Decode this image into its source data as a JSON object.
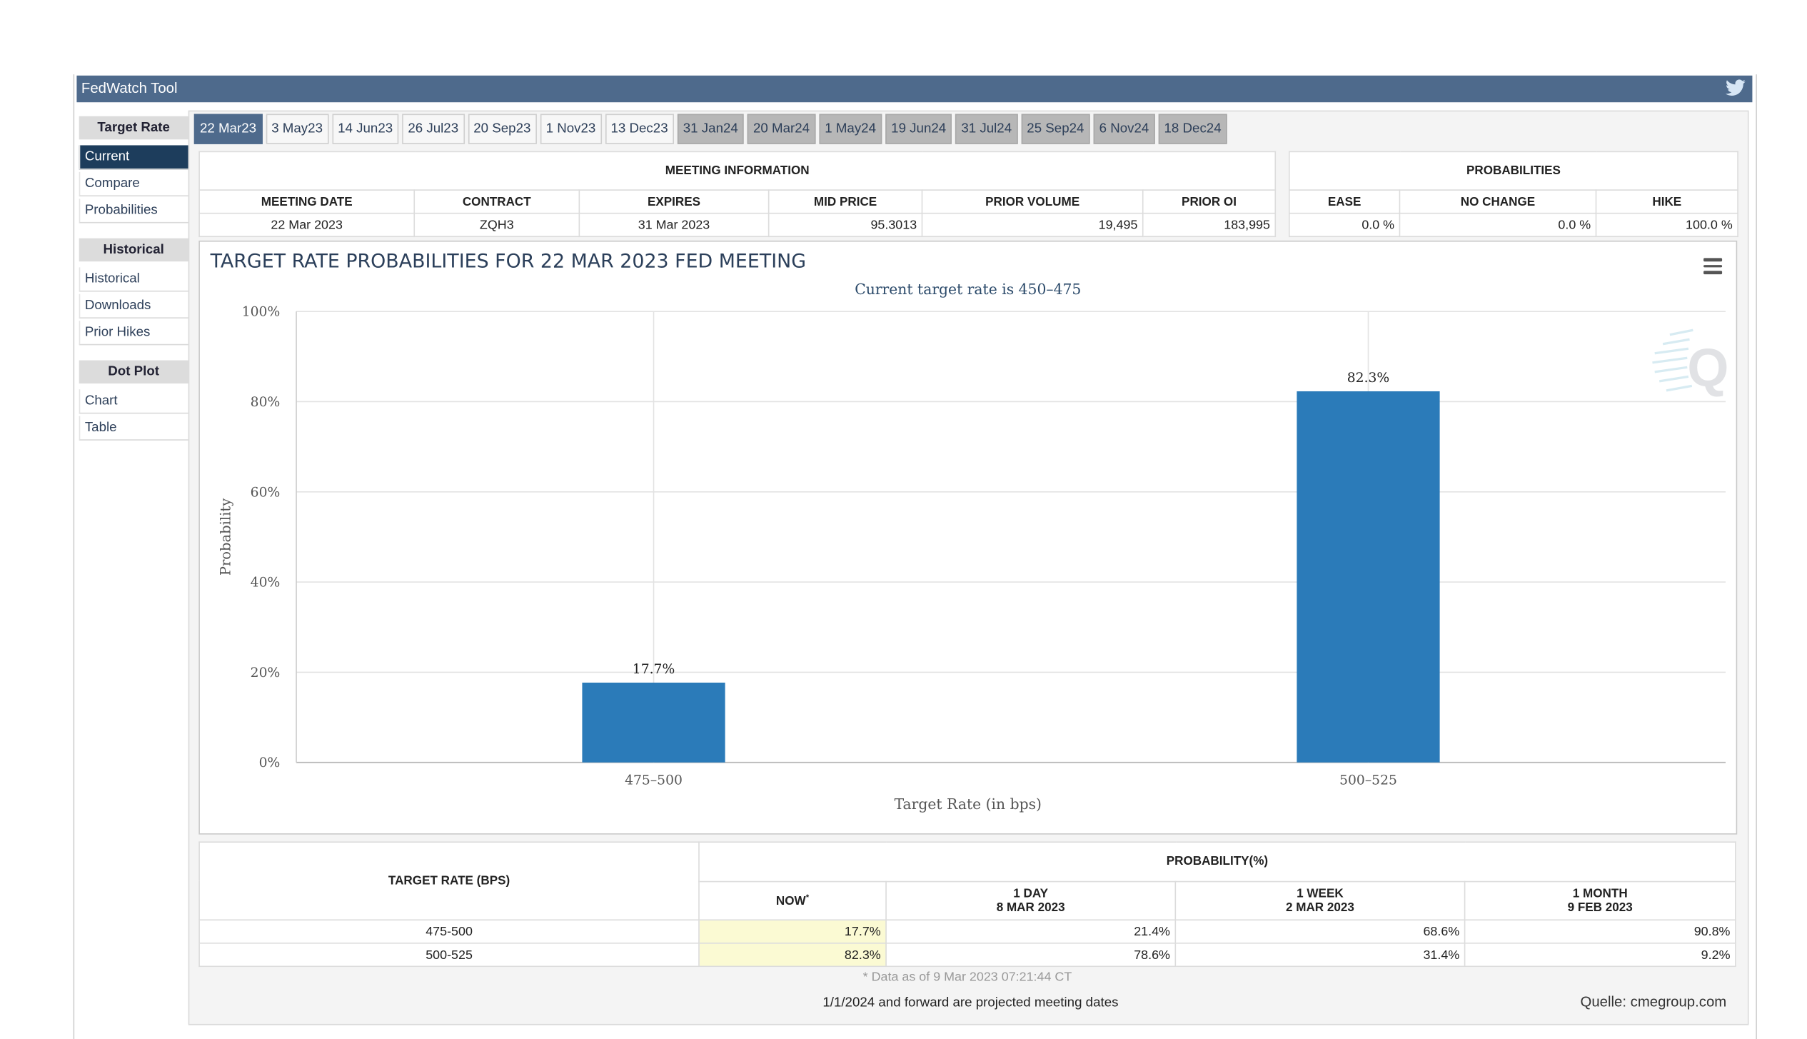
{
  "app": {
    "title": "FedWatch Tool"
  },
  "sidebar": {
    "sections": [
      {
        "heading": "Target Rate",
        "items": [
          "Current",
          "Compare",
          "Probabilities"
        ]
      },
      {
        "heading": "Historical",
        "items": [
          "Historical",
          "Downloads",
          "Prior Hikes"
        ]
      },
      {
        "heading": "Dot Plot",
        "items": [
          "Chart",
          "Table"
        ]
      }
    ]
  },
  "tabs": {
    "active": [
      "22 Mar23",
      "3 May23",
      "14 Jun23",
      "26 Jul23",
      "20 Sep23",
      "1 Nov23",
      "13 Dec23"
    ],
    "future": [
      "31 Jan24",
      "20 Mar24",
      "1 May24",
      "19 Jun24",
      "31 Jul24",
      "25 Sep24",
      "6 Nov24",
      "18 Dec24"
    ]
  },
  "meeting_info": {
    "caption": "MEETING INFORMATION",
    "headers": [
      "MEETING DATE",
      "CONTRACT",
      "EXPIRES",
      "MID PRICE",
      "PRIOR VOLUME",
      "PRIOR OI"
    ],
    "values": [
      "22 Mar 2023",
      "ZQH3",
      "31 Mar 2023",
      "95.3013",
      "19,495",
      "183,995"
    ]
  },
  "probabilities": {
    "caption": "PROBABILITIES",
    "headers": [
      "EASE",
      "NO CHANGE",
      "HIKE"
    ],
    "values": [
      "0.0 %",
      "0.0 %",
      "100.0 %"
    ]
  },
  "chart_data": {
    "type": "bar",
    "title": "TARGET RATE PROBABILITIES FOR 22 MAR 2023 FED MEETING",
    "subtitle": "Current target rate is 450–475",
    "categories": [
      "475–500",
      "500–525"
    ],
    "values": [
      17.7,
      82.3
    ],
    "value_labels": [
      "17.7%",
      "82.3%"
    ],
    "xlabel": "Target Rate (in bps)",
    "ylabel": "Probability",
    "ylim": [
      0,
      100
    ],
    "yticks": [
      "0%",
      "20%",
      "40%",
      "60%",
      "80%",
      "100%"
    ],
    "grid": true,
    "color": "#2b7bb9"
  },
  "prob_table": {
    "rate_header": "TARGET RATE (BPS)",
    "prob_header": "PROBABILITY(%)",
    "cols": [
      {
        "l1": "NOW",
        "sup": "*",
        "l2": ""
      },
      {
        "l1": "1 DAY",
        "l2": "8 MAR 2023"
      },
      {
        "l1": "1 WEEK",
        "l2": "2 MAR 2023"
      },
      {
        "l1": "1 MONTH",
        "l2": "9 FEB 2023"
      }
    ],
    "rows": [
      {
        "rate": "475-500",
        "vals": [
          "17.7%",
          "21.4%",
          "68.6%",
          "90.8%"
        ]
      },
      {
        "rate": "500-525",
        "vals": [
          "82.3%",
          "78.6%",
          "31.4%",
          "9.2%"
        ]
      }
    ]
  },
  "footer": {
    "data_note": "* Data as of 9 Mar 2023 07:21:44 CT",
    "projected_note": "1/1/2024 and forward are projected meeting dates",
    "source": "Quelle: cmegroup.com"
  }
}
